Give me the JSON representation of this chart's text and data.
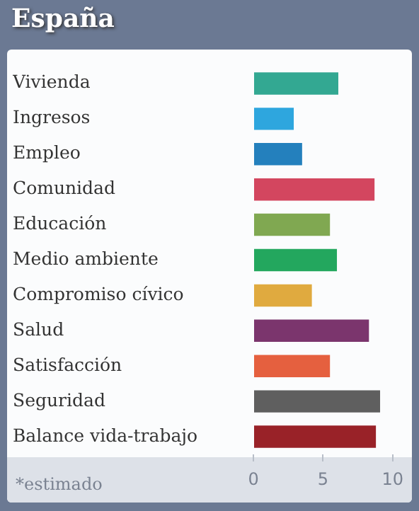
{
  "chart_data": {
    "type": "bar",
    "orientation": "horizontal",
    "title": "España",
    "categories": [
      "Vivienda",
      "Ingresos",
      "Empleo",
      "Comunidad",
      "Educación",
      "Medio ambiente",
      "Compromiso cívico",
      "Salud",
      "Satisfacción",
      "Seguridad",
      "Balance vida-trabajo"
    ],
    "values": [
      6.1,
      2.9,
      3.5,
      8.7,
      5.5,
      6.0,
      4.2,
      8.3,
      5.5,
      9.1,
      8.8
    ],
    "colors": [
      "#33a892",
      "#2ea6de",
      "#2480bd",
      "#d3465f",
      "#80a851",
      "#23a75e",
      "#e0aa3f",
      "#7b356d",
      "#e5603f",
      "#5f5f5f",
      "#992228"
    ],
    "xlim": [
      0,
      10
    ],
    "xticks": [
      0,
      5,
      10
    ],
    "grid": false,
    "legend": false,
    "annotations": [
      "*estimado"
    ]
  }
}
